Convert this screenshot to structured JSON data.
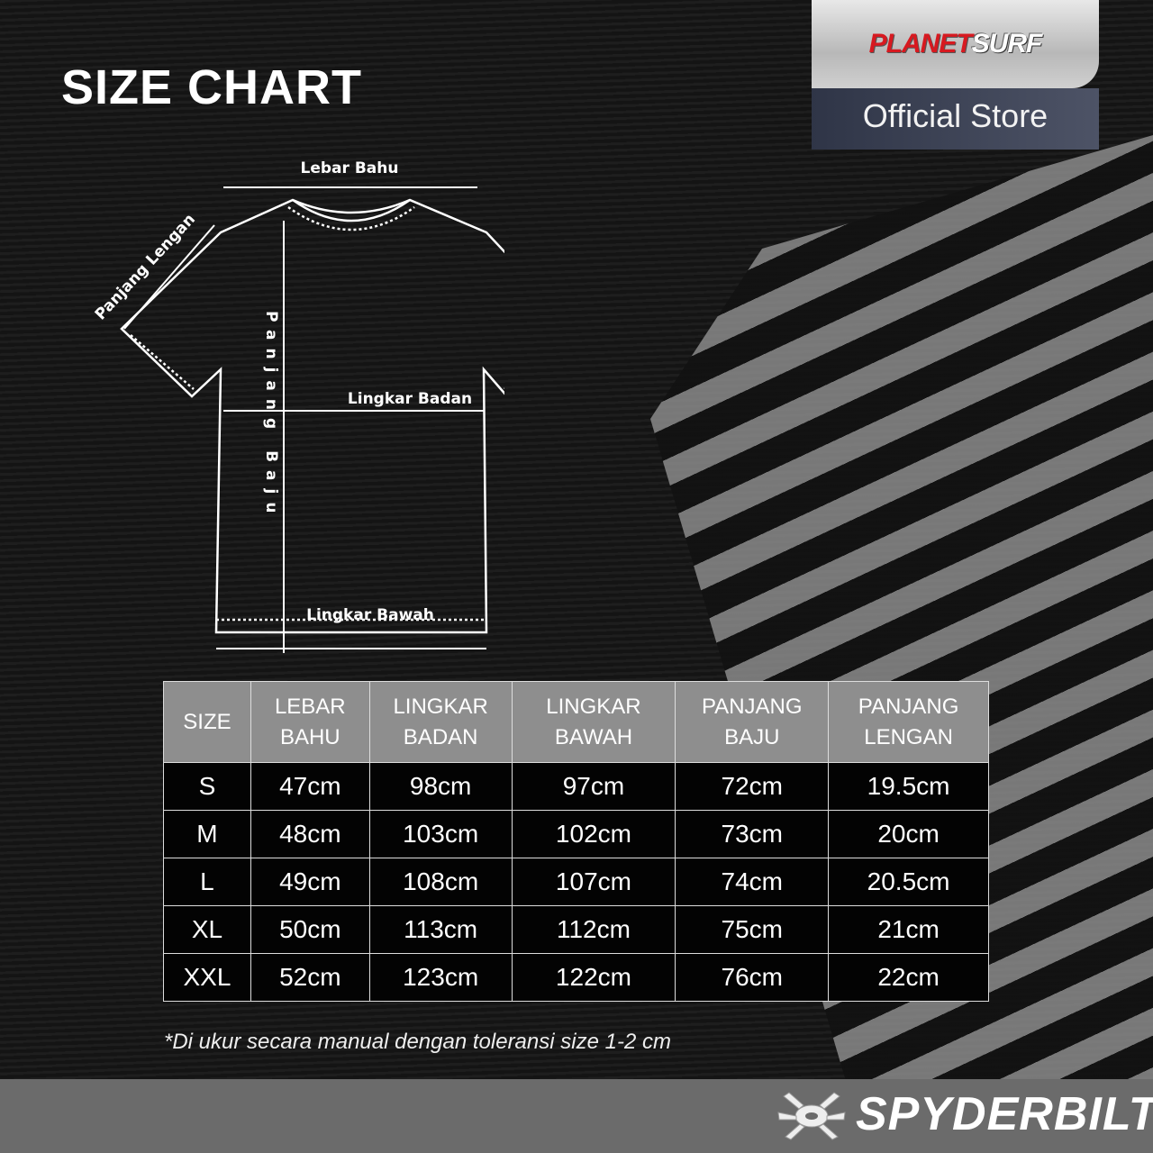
{
  "title": "SIZE CHART",
  "logo": {
    "brand_red": "PLANET",
    "brand_white": "SURF",
    "subtitle": "Official Store"
  },
  "diagram": {
    "lebar_bahu": "Lebar Bahu",
    "panjang_lengan": "Panjang Lengan",
    "panjang_baju": "Panjang Baju",
    "lingkar_badan": "Lingkar Badan",
    "lingkar_bawah": "Lingkar Bawah"
  },
  "table": {
    "headers": [
      [
        "SIZE"
      ],
      [
        "LEBAR",
        "BAHU"
      ],
      [
        "LINGKAR",
        "BADAN"
      ],
      [
        "LINGKAR",
        "BAWAH"
      ],
      [
        "PANJANG",
        "BAJU"
      ],
      [
        "PANJANG",
        "LENGAN"
      ]
    ],
    "rows": [
      [
        "S",
        "47cm",
        "98cm",
        "97cm",
        "72cm",
        "19.5cm"
      ],
      [
        "M",
        "48cm",
        "103cm",
        "102cm",
        "73cm",
        "20cm"
      ],
      [
        "L",
        "49cm",
        "108cm",
        "107cm",
        "74cm",
        "20.5cm"
      ],
      [
        "XL",
        "50cm",
        "113cm",
        "112cm",
        "75cm",
        "21cm"
      ],
      [
        "XXL",
        "52cm",
        "123cm",
        "122cm",
        "76cm",
        "22cm"
      ]
    ]
  },
  "note": "*Di ukur secara manual dengan toleransi size 1-2 cm",
  "footer": {
    "brand": "SPYDERBILT"
  },
  "colors": {
    "header_bg": "#8e8e8e",
    "cell_bg": "#030303",
    "footer_bg": "#6b6b6b",
    "brand_red": "#d71920"
  }
}
